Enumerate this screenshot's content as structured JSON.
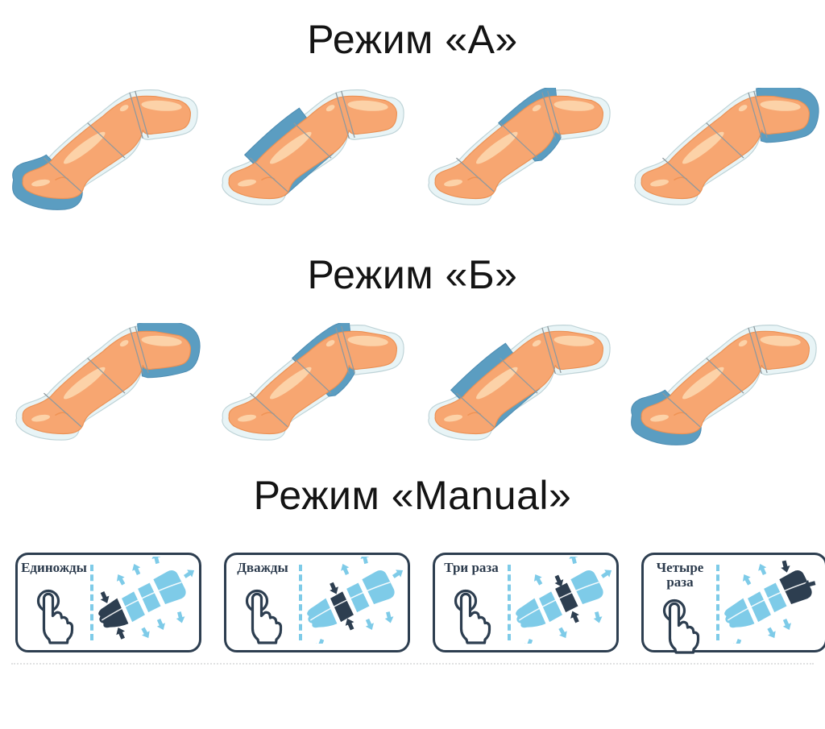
{
  "colors": {
    "skin": "#f7a671",
    "skin_edge": "#eb9154",
    "skin_hl": "#fcd2a8",
    "skin_shade": "#ef9355",
    "sleeve": "#e8f4f6",
    "sleeve_edge": "#bed3d7",
    "divider": "#8f999e",
    "highlight": "#5b9dc1",
    "highlight_edge": "#4d8cb2",
    "navy": "#2d3e50",
    "cuff_light": "#7ecbe8",
    "dash": "#7ecbe8",
    "title_text": "#141414"
  },
  "sections": [
    {
      "id": "mode-a",
      "title": "Режим «А»",
      "legs": [
        {
          "highlight": "foot"
        },
        {
          "highlight": "calf"
        },
        {
          "highlight": "knee"
        },
        {
          "highlight": "thigh"
        }
      ]
    },
    {
      "id": "mode-b",
      "title": "Режим «Б»",
      "legs": [
        {
          "highlight": "thigh"
        },
        {
          "highlight": "knee"
        },
        {
          "highlight": "calf"
        },
        {
          "highlight": "foot"
        }
      ]
    },
    {
      "id": "mode-manual",
      "title": "Режим «Manual»",
      "panels": [
        {
          "label": "Единожды",
          "press_count": 1,
          "active_segment": "foot"
        },
        {
          "label": "Дважды",
          "press_count": 2,
          "active_segment": "calf"
        },
        {
          "label": "Три раза",
          "press_count": 3,
          "active_segment": "knee"
        },
        {
          "label": "Четыре раза",
          "press_count": 4,
          "active_segment": "thigh"
        }
      ]
    }
  ]
}
